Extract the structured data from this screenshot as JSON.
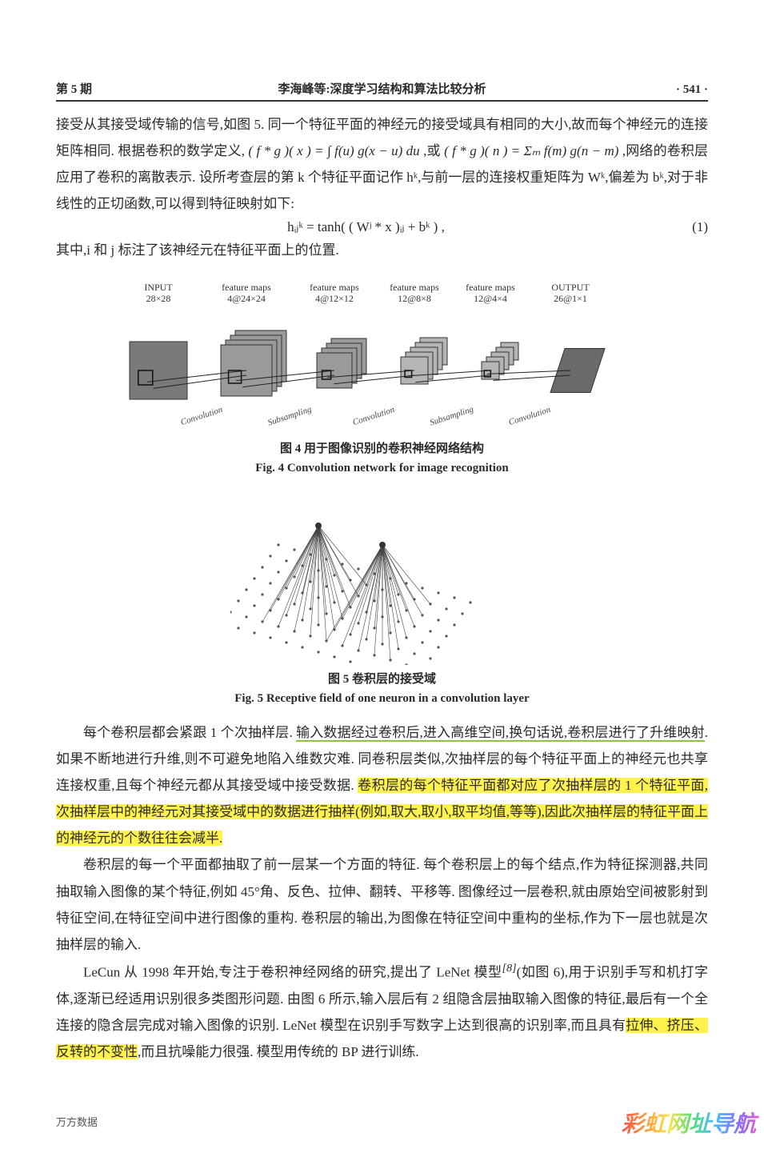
{
  "header": {
    "issue": "第 5 期",
    "title": "李海峰等:深度学习结构和算法比较分析",
    "page": "· 541 ·"
  },
  "para1_a": "接受从其接受域传输的信号,如图 5. 同一个特征平面的神经元的接受域具有相同的大小,故而每个神经元的连接矩阵相同. 根据卷积的数学定义,",
  "para1_formula1": "( f * g )( x ) = ∫ f(u) g(x − u) du",
  "para1_b": ",或",
  "para1_formula2": "( f * g )( n ) = Σₘ f(m) g(n − m)",
  "para1_c": ",网络的卷积层应用了卷积的离散表示. 设所考查层的第 k 个特征平面记作 hᵏ,与前一层的连接权重矩阵为 Wᵏ,偏差为 bᵏ,对于非线性的正切函数,可以得到特征映射如下:",
  "eq1_formula": "hᵢⱼᵏ = tanh( ( Wʲ * x )ᵢⱼ + bᵏ ) ,",
  "eq1_num": "(1)",
  "para1_d": "其中,i 和 j 标注了该神经元在特征平面上的位置.",
  "fig4": {
    "stages": [
      {
        "top": "INPUT",
        "bot": "28×28",
        "n": 1,
        "size": 72,
        "fill": "#7a7a7a"
      },
      {
        "top": "feature maps",
        "bot": "4@24×24",
        "n": 4,
        "size": 64,
        "fill": "#9a9a9a"
      },
      {
        "top": "feature maps",
        "bot": "4@12×12",
        "n": 4,
        "size": 44,
        "fill": "#9a9a9a"
      },
      {
        "top": "feature maps",
        "bot": "12@8×8",
        "n": 12,
        "size": 34,
        "fill": "#b5b5b5"
      },
      {
        "top": "feature maps",
        "bot": "12@4×4",
        "n": 12,
        "size": 22,
        "fill": "#b5b5b5"
      },
      {
        "top": "OUTPUT",
        "bot": "26@1×1",
        "n": 1,
        "size": 50,
        "fill": "#6a6a6a",
        "oblique": true
      }
    ],
    "ops": [
      "Convolution",
      "Subsampling",
      "Convolution",
      "Subsampling",
      "Convolution"
    ],
    "caption_cn": "图 4  用于图像识别的卷积神经网络结构",
    "caption_en": "Fig. 4  Convolution network for image recognition"
  },
  "fig5": {
    "caption_cn": "图 5  卷积层的接受域",
    "caption_en": "Fig. 5  Receptive field of one neuron in a convolution layer",
    "grid_cols": 13,
    "grid_rows": 8,
    "spacing": 22,
    "neurons": [
      {
        "col": 4,
        "row": -3
      },
      {
        "col": 8,
        "row": -3
      }
    ],
    "dot_color": "#555",
    "line_color": "#444",
    "neuron_fill": "#333"
  },
  "para2_pre": "每个卷积层都会紧跟 1 个次抽样层. ",
  "para2_ul": "输入数据经过卷积后,进入高维空间,换句话说,卷积层进行了升维映射",
  "para2_mid": ". 如果不断地进行升维,则不可避免地陷入维数灾难. 同卷积层类似,次抽样层的每个特征平面上的神经元也共享连接权重,且每个神经元都从其接受域中接受数据. ",
  "para2_hl": "卷积层的每个特征平面都对应了次抽样层的 1 个特征平面,次抽样层中的神经元对其接受域中的数据进行抽样(例如,取大,取小,取平均值,等等),因此次抽样层的特征平面上的神经元的个数往往会减半.",
  "para3": "卷积层的每一个平面都抽取了前一层某一个方面的特征. 每个卷积层上的每个结点,作为特征探测器,共同抽取输入图像的某个特征,例如 45°角、反色、拉伸、翻转、平移等. 图像经过一层卷积,就由原始空间被影射到特征空间,在特征空间中进行图像的重构. 卷积层的输出,为图像在特征空间中重构的坐标,作为下一层也就是次抽样层的输入.",
  "para4_a": "LeCun 从 1998 年开始,专注于卷积神经网络的研究,提出了 LeNet 模型",
  "para4_ref": "[8]",
  "para4_b": "(如图 6),用于识别手写和机打字体,逐渐已经适用识别很多类图形问题. 由图 6 所示,输入层后有 2 组隐含层抽取输入图像的特征,最后有一个全连接的隐含层完成对输入图像的识别. LeNet 模型在识别手写数字上达到很高的识别率,而且具有",
  "para4_hl": "拉伸、挤压、反转的不变性",
  "para4_c": ",而且抗噪能力很强. 模型用传统的 BP 进行训练.",
  "footer": "万方数据",
  "watermark": "彩虹网址导航",
  "colors": {
    "text": "#2a2a2a",
    "rule": "#333333",
    "highlight_yellow": "#fff24d",
    "underline_green": "#8bc63c",
    "background": "#ffffff"
  }
}
